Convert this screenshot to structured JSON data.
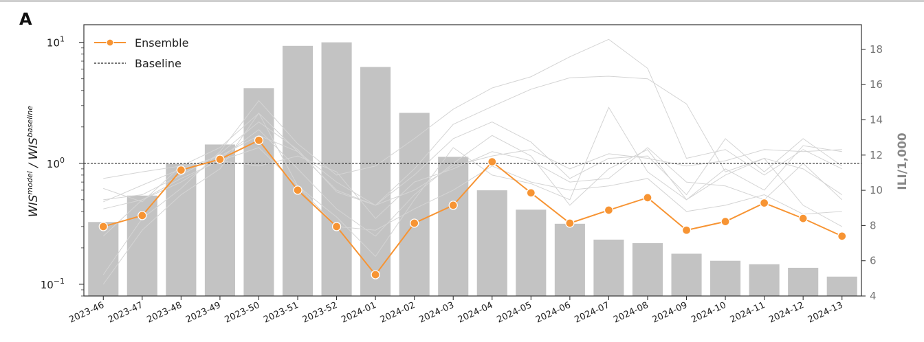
{
  "panel_label": "A",
  "chart_data": {
    "type": "bar+line",
    "categories": [
      "2023-46",
      "2023-47",
      "2023-48",
      "2023-49",
      "2023-50",
      "2023-51",
      "2023-52",
      "2024-01",
      "2024-02",
      "2024-03",
      "2024-04",
      "2024-05",
      "2024-06",
      "2024-07",
      "2024-08",
      "2024-09",
      "2024-10",
      "2024-11",
      "2024-12",
      "2024-13"
    ],
    "left_axis": {
      "label_main": "WIS",
      "label_sup1": "model",
      "label_sep": " / WIS",
      "label_sup2": "baseline",
      "scale": "log",
      "ylim": [
        0.08,
        14
      ],
      "ticks": [
        {
          "value": 0.1,
          "base": "10",
          "exp": "−1"
        },
        {
          "value": 1,
          "base": "10",
          "exp": "0"
        },
        {
          "value": 10,
          "base": "10",
          "exp": "1"
        }
      ]
    },
    "right_axis": {
      "label": "ILI/1,000",
      "ylim": [
        4,
        19.4
      ],
      "ticks": [
        "4",
        "6",
        "8",
        "10",
        "12",
        "14",
        "16",
        "18"
      ]
    },
    "bars": {
      "name": "ILI/1,000",
      "color": "#c3c3c3",
      "values": [
        8.2,
        9.7,
        11.5,
        12.6,
        15.8,
        18.2,
        18.4,
        17.0,
        14.4,
        11.9,
        10.0,
        8.9,
        8.1,
        7.2,
        7.0,
        6.4,
        6.0,
        5.8,
        5.6,
        5.1
      ]
    },
    "series": [
      {
        "name": "Ensemble",
        "color": "#f79433",
        "values": [
          0.3,
          0.37,
          0.88,
          1.08,
          1.55,
          0.6,
          0.3,
          0.12,
          0.32,
          0.45,
          1.03,
          0.57,
          0.32,
          0.41,
          0.52,
          0.28,
          0.33,
          0.47,
          0.35,
          0.25
        ]
      },
      {
        "name": "Baseline",
        "color": "#222222",
        "values": [
          1,
          1,
          1,
          1,
          1,
          1,
          1,
          1,
          1,
          1,
          1,
          1,
          1,
          1,
          1,
          1,
          1,
          1,
          1,
          1
        ]
      }
    ],
    "background_series": [
      [
        0.62,
        0.48,
        0.95,
        1.35,
        2.6,
        1.25,
        0.7,
        0.45,
        0.9,
        2.1,
        2.95,
        4.1,
        5.1,
        5.25,
        5.0,
        3.1,
        0.85,
        1.1,
        0.9,
        0.55
      ],
      [
        0.42,
        0.5,
        0.7,
        1.1,
        1.9,
        0.9,
        0.42,
        0.25,
        0.55,
        1.0,
        1.7,
        1.15,
        0.45,
        0.9,
        1.3,
        0.5,
        0.8,
        1.1,
        0.45,
        0.3
      ],
      [
        0.12,
        0.35,
        0.62,
        1.25,
        3.3,
        1.45,
        0.8,
        0.95,
        1.6,
        2.8,
        4.2,
        5.2,
        7.6,
        10.6,
        6.1,
        1.1,
        1.3,
        0.8,
        1.3,
        0.9
      ],
      [
        0.1,
        0.28,
        0.55,
        0.9,
        2.6,
        0.65,
        0.36,
        0.17,
        0.5,
        1.35,
        0.8,
        0.68,
        0.5,
        2.9,
        0.85,
        0.5,
        0.9,
        0.6,
        1.4,
        1.25
      ],
      [
        0.5,
        0.55,
        0.8,
        1.2,
        2.2,
        1.3,
        0.58,
        0.45,
        0.6,
        0.95,
        1.15,
        1.3,
        0.9,
        1.2,
        1.1,
        0.95,
        1.05,
        1.3,
        1.25,
        1.3
      ],
      [
        0.75,
        0.85,
        0.95,
        1.05,
        0.95,
        1.15,
        0.85,
        0.35,
        0.7,
        0.9,
        1.25,
        1.05,
        0.7,
        0.75,
        1.35,
        0.7,
        0.65,
        0.5,
        1.0,
        0.5
      ],
      [
        0.48,
        0.66,
        0.9,
        1.15,
        1.7,
        1.25,
        0.6,
        0.45,
        0.8,
        1.6,
        2.2,
        1.5,
        0.75,
        1.1,
        1.15,
        0.55,
        1.6,
        0.85,
        1.6,
        0.95
      ],
      [
        0.25,
        0.5,
        0.75,
        1.05,
        1.35,
        0.65,
        0.3,
        0.28,
        0.42,
        0.6,
        0.95,
        0.7,
        0.6,
        0.65,
        0.75,
        0.4,
        0.45,
        0.55,
        0.38,
        0.4
      ]
    ],
    "legend": {
      "position": "top-left",
      "entries": [
        {
          "label": "Ensemble"
        },
        {
          "label": "Baseline"
        }
      ]
    }
  }
}
